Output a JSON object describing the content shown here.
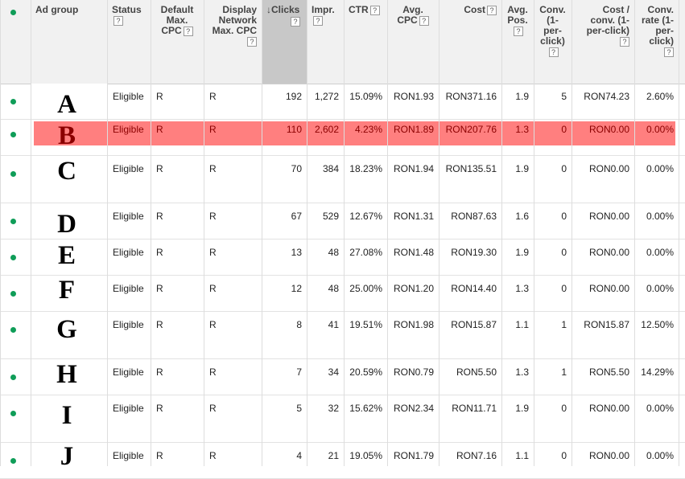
{
  "headers": [
    {
      "key": "adgroup",
      "label": "Ad group",
      "help": false
    },
    {
      "key": "status",
      "label": "Status",
      "help": true
    },
    {
      "key": "default_cpc",
      "label": "Default Max. CPC",
      "help": true
    },
    {
      "key": "display_cpc",
      "label": "Display Network Max. CPC",
      "help": true
    },
    {
      "key": "clicks",
      "label": "Clicks",
      "help": true,
      "sorted": true
    },
    {
      "key": "impr",
      "label": "Impr.",
      "help": true
    },
    {
      "key": "ctr",
      "label": "CTR",
      "help": true
    },
    {
      "key": "avg_cpc",
      "label": "Avg. CPC",
      "help": true
    },
    {
      "key": "cost",
      "label": "Cost",
      "help": true
    },
    {
      "key": "avg_pos",
      "label": "Avg. Pos.",
      "help": true
    },
    {
      "key": "conv",
      "label": "Conv. (1-per-click)",
      "help": true
    },
    {
      "key": "cost_conv",
      "label": "Cost / conv. (1-per-click)",
      "help": true
    },
    {
      "key": "conv_rate",
      "label": "Conv. rate (1-per-click)",
      "help": true
    }
  ],
  "sort_arrow": "↓",
  "help_glyph": "?",
  "status_color": "#0f9d58",
  "highlight_color": "#ff7f7f",
  "rows": [
    {
      "letter": "A",
      "status": "Eligible",
      "default_cpc": "R",
      "display_cpc": "R",
      "clicks": "192",
      "impr": "1,272",
      "ctr": "15.09%",
      "avg_cpc": "RON1.93",
      "cost": "RON371.16",
      "avg_pos": "1.9",
      "conv": "5",
      "cost_conv": "RON74.23",
      "conv_rate": "2.60%"
    },
    {
      "letter": "B",
      "status": "Eligible",
      "default_cpc": "R",
      "display_cpc": "R",
      "clicks": "110",
      "impr": "2,602",
      "ctr": "4.23%",
      "avg_cpc": "RON1.89",
      "cost": "RON207.76",
      "avg_pos": "1.3",
      "conv": "0",
      "cost_conv": "RON0.00",
      "conv_rate": "0.00%",
      "highlighted": true
    },
    {
      "letter": "C",
      "status": "Eligible",
      "default_cpc": "R",
      "display_cpc": "R",
      "clicks": "70",
      "impr": "384",
      "ctr": "18.23%",
      "avg_cpc": "RON1.94",
      "cost": "RON135.51",
      "avg_pos": "1.9",
      "conv": "0",
      "cost_conv": "RON0.00",
      "conv_rate": "0.00%"
    },
    {
      "letter": "D",
      "status": "Eligible",
      "default_cpc": "R",
      "display_cpc": "R",
      "clicks": "67",
      "impr": "529",
      "ctr": "12.67%",
      "avg_cpc": "RON1.31",
      "cost": "RON87.63",
      "avg_pos": "1.6",
      "conv": "0",
      "cost_conv": "RON0.00",
      "conv_rate": "0.00%"
    },
    {
      "letter": "E",
      "status": "Eligible",
      "default_cpc": "R",
      "display_cpc": "R",
      "clicks": "13",
      "impr": "48",
      "ctr": "27.08%",
      "avg_cpc": "RON1.48",
      "cost": "RON19.30",
      "avg_pos": "1.9",
      "conv": "0",
      "cost_conv": "RON0.00",
      "conv_rate": "0.00%"
    },
    {
      "letter": "F",
      "status": "Eligible",
      "default_cpc": "R",
      "display_cpc": "R",
      "clicks": "12",
      "impr": "48",
      "ctr": "25.00%",
      "avg_cpc": "RON1.20",
      "cost": "RON14.40",
      "avg_pos": "1.3",
      "conv": "0",
      "cost_conv": "RON0.00",
      "conv_rate": "0.00%"
    },
    {
      "letter": "G",
      "status": "Eligible",
      "default_cpc": "R",
      "display_cpc": "R",
      "clicks": "8",
      "impr": "41",
      "ctr": "19.51%",
      "avg_cpc": "RON1.98",
      "cost": "RON15.87",
      "avg_pos": "1.1",
      "conv": "1",
      "cost_conv": "RON15.87",
      "conv_rate": "12.50%"
    },
    {
      "letter": "H",
      "status": "Eligible",
      "default_cpc": "R",
      "display_cpc": "R",
      "clicks": "7",
      "impr": "34",
      "ctr": "20.59%",
      "avg_cpc": "RON0.79",
      "cost": "RON5.50",
      "avg_pos": "1.3",
      "conv": "1",
      "cost_conv": "RON5.50",
      "conv_rate": "14.29%"
    },
    {
      "letter": "I",
      "status": "Eligible",
      "default_cpc": "R",
      "display_cpc": "R",
      "clicks": "5",
      "impr": "32",
      "ctr": "15.62%",
      "avg_cpc": "RON2.34",
      "cost": "RON11.71",
      "avg_pos": "1.9",
      "conv": "0",
      "cost_conv": "RON0.00",
      "conv_rate": "0.00%"
    },
    {
      "letter": "J",
      "status": "Eligible",
      "default_cpc": "R",
      "display_cpc": "R",
      "clicks": "4",
      "impr": "21",
      "ctr": "19.05%",
      "avg_cpc": "RON1.79",
      "cost": "RON7.16",
      "avg_pos": "1.1",
      "conv": "0",
      "cost_conv": "RON0.00",
      "conv_rate": "0.00%"
    }
  ]
}
